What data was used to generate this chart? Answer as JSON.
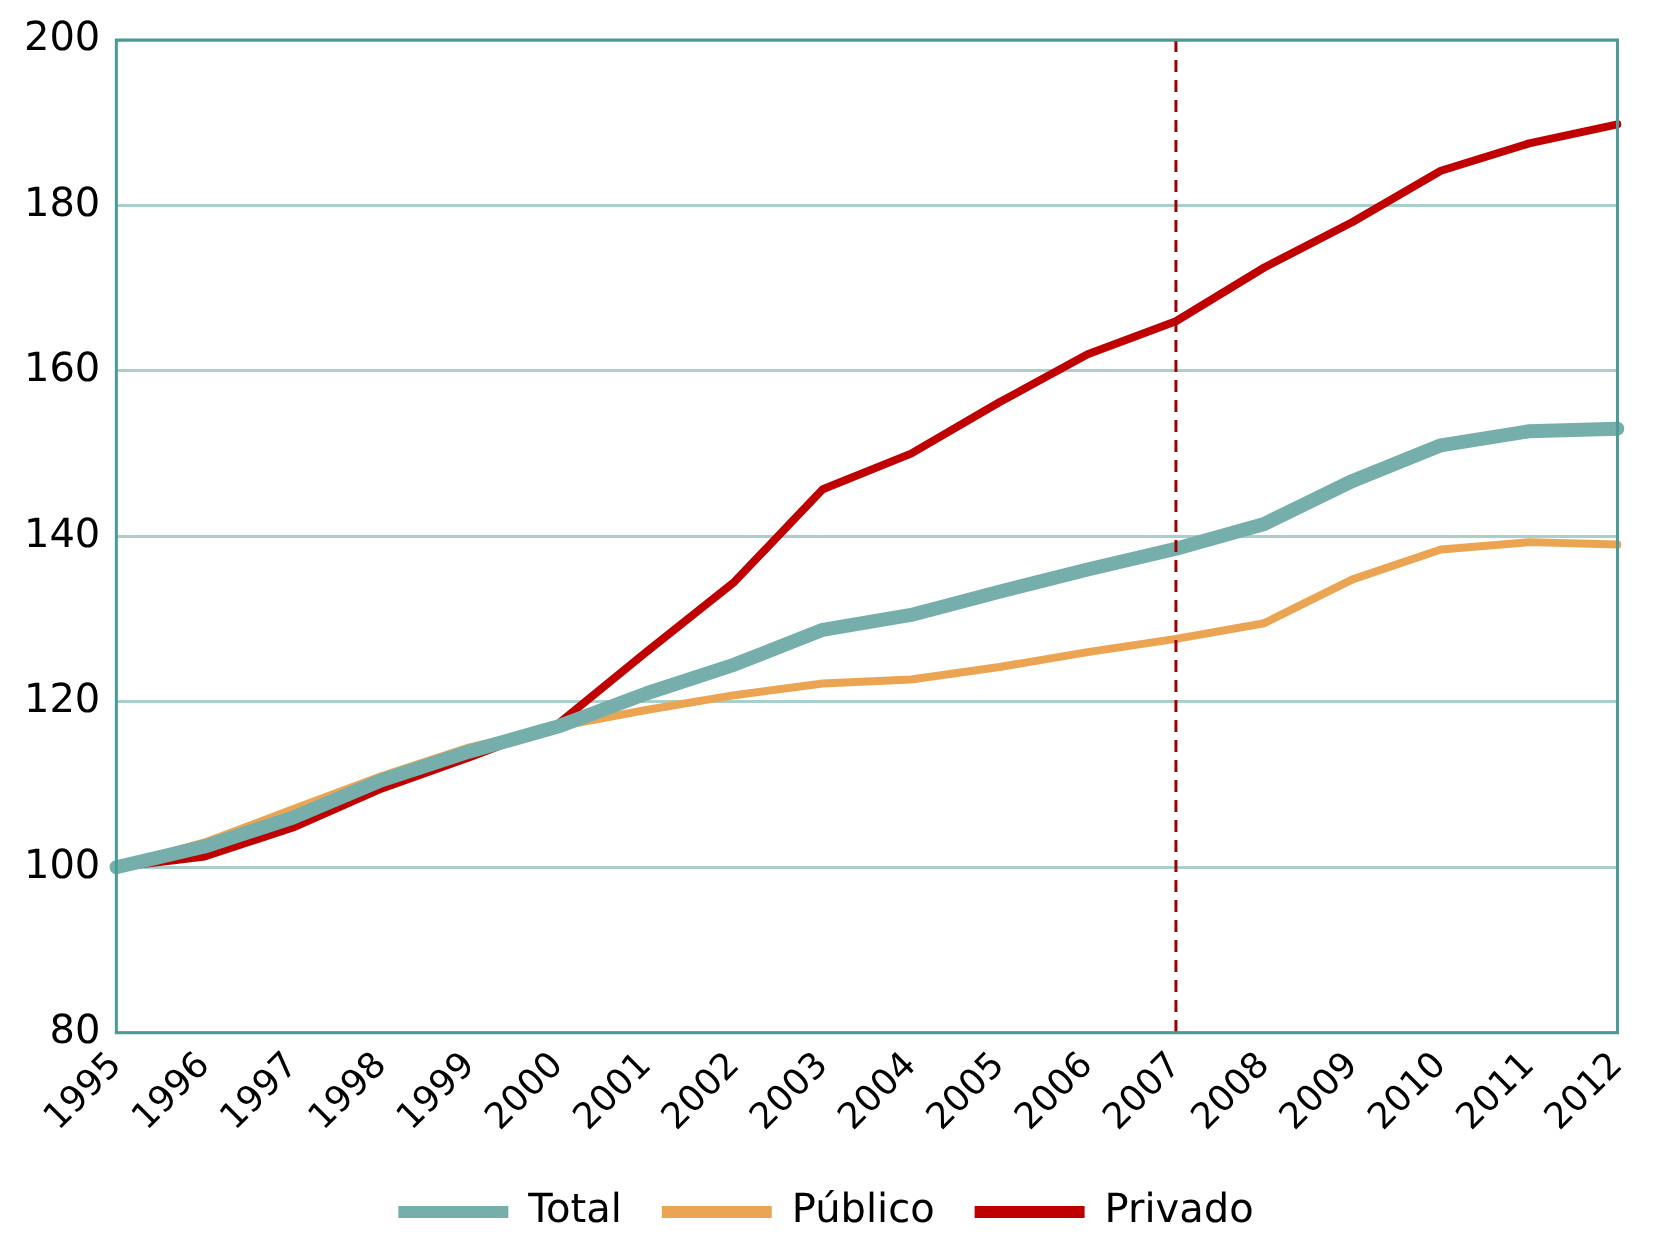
{
  "chart_data": {
    "type": "line",
    "categories": [
      "1995",
      "1996",
      "1997",
      "1998",
      "1999",
      "2000",
      "2001",
      "2002",
      "2003",
      "2004",
      "2005",
      "2006",
      "2007",
      "2008",
      "2009",
      "2010",
      "2011",
      "2012"
    ],
    "series": [
      {
        "name": "Total",
        "color": "#75aeab",
        "values": [
          100,
          102.5,
          106,
          110.5,
          114,
          117,
          121,
          124.5,
          128.7,
          130.5,
          133.3,
          136,
          138.5,
          141.5,
          146.7,
          151,
          152.7,
          153
        ]
      },
      {
        "name": "Público",
        "color": "#eba552",
        "values": [
          100,
          103,
          107,
          111,
          114.5,
          117,
          119,
          120.8,
          122.2,
          122.7,
          124.2,
          126,
          127.6,
          129.5,
          134.8,
          138.4,
          139.3,
          139
        ]
      },
      {
        "name": "Privado",
        "color": "#c00000",
        "values": [
          100,
          101.3,
          104.8,
          109.5,
          113.3,
          117.3,
          126,
          134.5,
          145.7,
          150,
          156.2,
          162,
          166,
          172.5,
          178,
          184.2,
          187.5,
          189.8
        ]
      }
    ],
    "ylim": [
      80,
      200
    ],
    "yticks": [
      80,
      100,
      120,
      140,
      160,
      180,
      200
    ],
    "grid": "y",
    "legend": "bottom",
    "marker": "none",
    "line_style": "solid",
    "ref_lines": [
      {
        "axis": "x",
        "value": "2007",
        "color": "#a00000",
        "line_style": "dashed"
      }
    ]
  }
}
